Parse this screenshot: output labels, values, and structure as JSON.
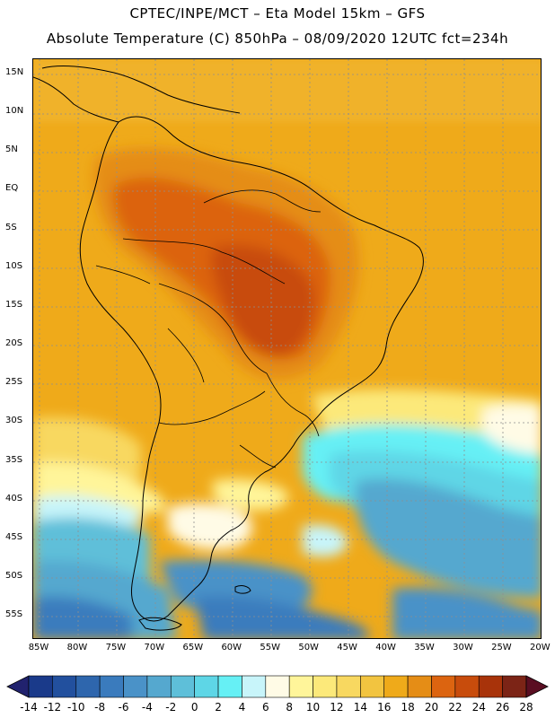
{
  "header": {
    "title_line_1": "CPTEC/INPE/MCT –  Eta Model 15km – GFS",
    "title_line_2": "Absolute Temperature (C) 850hPa – 08/09/2020 12UTC fct=234h"
  },
  "map": {
    "region": "South America",
    "latitude_labels": [
      "15N",
      "10N",
      "5N",
      "EQ",
      "5S",
      "10S",
      "15S",
      "20S",
      "25S",
      "30S",
      "35S",
      "40S",
      "45S",
      "50S",
      "55S"
    ],
    "longitude_labels": [
      "85W",
      "80W",
      "75W",
      "70W",
      "65W",
      "60W",
      "55W",
      "50W",
      "45W",
      "40W",
      "35W",
      "30W",
      "25W",
      "20W"
    ]
  },
  "colorbar": {
    "labels": [
      "-14",
      "-12",
      "-10",
      "-8",
      "-6",
      "-4",
      "-2",
      "0",
      "2",
      "4",
      "6",
      "8",
      "10",
      "12",
      "14",
      "16",
      "18",
      "20",
      "22",
      "24",
      "26",
      "28"
    ],
    "colors": [
      "#1a3a8a",
      "#22509e",
      "#2e66ad",
      "#3a7bbd",
      "#4a92c8",
      "#55a8cf",
      "#5ebfd9",
      "#5ed6e6",
      "#66f0f5",
      "#c8f5fa",
      "#fffbe6",
      "#fff59a",
      "#fce97a",
      "#f8d860",
      "#f2c440",
      "#efaa1a",
      "#e58d16",
      "#dc6410",
      "#c84c0c",
      "#a8330a",
      "#7c2416"
    ],
    "left_arrow_color": "#21226e",
    "right_arrow_color": "#5a0e22"
  }
}
